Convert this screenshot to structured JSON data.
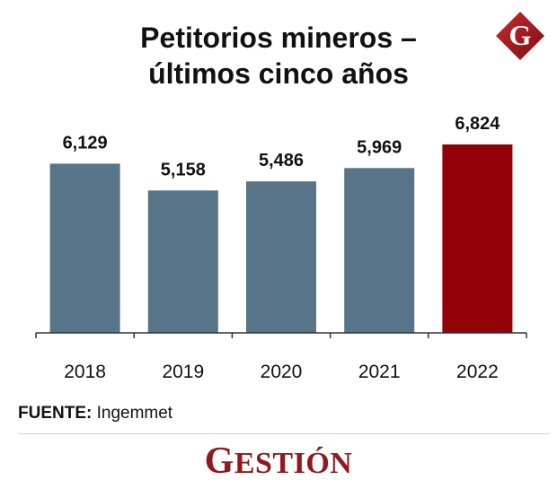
{
  "header": {
    "title_line1": "Petitorios mineros –",
    "title_line2": "últimos cinco años",
    "logo_letter": "G"
  },
  "chart_data": {
    "type": "bar",
    "title": "Petitorios mineros – últimos cinco años",
    "categories": [
      "2018",
      "2019",
      "2020",
      "2021",
      "2022"
    ],
    "values": [
      6129,
      5158,
      5486,
      5969,
      6824
    ],
    "value_labels": [
      "6,129",
      "5,158",
      "5,486",
      "5,969",
      "6,824"
    ],
    "xlabel": "",
    "ylabel": "",
    "ylim": [
      0,
      6824
    ],
    "grid": false,
    "bar_colors": [
      "#587488",
      "#587488",
      "#587488",
      "#587488",
      "#940008"
    ],
    "axis_color": "#333333"
  },
  "footer": {
    "source_label": "FUENTE:",
    "source_value": "Ingemmet",
    "brand_first": "G",
    "brand_rest": "ESTIÓN",
    "brand_color": "#8f1a1d"
  }
}
